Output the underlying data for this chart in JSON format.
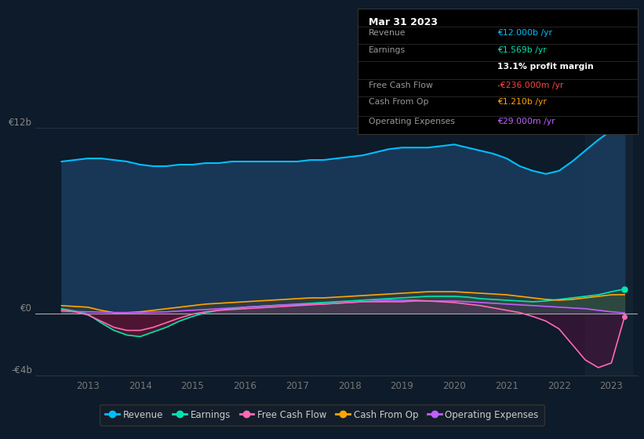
{
  "bg_color": "#0d1b2a",
  "ylim": [
    -4000000000,
    13000000000
  ],
  "xlim": [
    2012.0,
    2023.5
  ],
  "xticks": [
    2013,
    2014,
    2015,
    2016,
    2017,
    2018,
    2019,
    2020,
    2021,
    2022,
    2023
  ],
  "ylabel_top": "€12b",
  "ylabel_zero": "€0",
  "ylabel_bottom": "-€4b",
  "ytick_vals": [
    12000000000,
    0,
    -4000000000
  ],
  "legend": [
    {
      "label": "Revenue",
      "color": "#00bfff"
    },
    {
      "label": "Earnings",
      "color": "#00e5b0"
    },
    {
      "label": "Free Cash Flow",
      "color": "#ff69b4"
    },
    {
      "label": "Cash From Op",
      "color": "#ffa500"
    },
    {
      "label": "Operating Expenses",
      "color": "#bf5fff"
    }
  ],
  "tooltip": {
    "title": "Mar 31 2023",
    "rows": [
      {
        "label": "Revenue",
        "value": "€12.000b /yr",
        "value_color": "#00bfff"
      },
      {
        "label": "Earnings",
        "value": "€1.569b /yr",
        "value_color": "#00e5b0"
      },
      {
        "label": "",
        "value": "13.1% profit margin",
        "value_color": "#ffffff"
      },
      {
        "label": "Free Cash Flow",
        "value": "-€236.000m /yr",
        "value_color": "#ff4444"
      },
      {
        "label": "Cash From Op",
        "value": "€1.210b /yr",
        "value_color": "#ffa500"
      },
      {
        "label": "Operating Expenses",
        "value": "€29.000m /yr",
        "value_color": "#bf5fff"
      }
    ]
  },
  "years": [
    2012.5,
    2012.75,
    2013.0,
    2013.25,
    2013.5,
    2013.75,
    2014.0,
    2014.25,
    2014.5,
    2014.75,
    2015.0,
    2015.25,
    2015.5,
    2015.75,
    2016.0,
    2016.25,
    2016.5,
    2016.75,
    2017.0,
    2017.25,
    2017.5,
    2017.75,
    2018.0,
    2018.25,
    2018.5,
    2018.75,
    2019.0,
    2019.25,
    2019.5,
    2019.75,
    2020.0,
    2020.25,
    2020.5,
    2020.75,
    2021.0,
    2021.25,
    2021.5,
    2021.75,
    2022.0,
    2022.25,
    2022.5,
    2022.75,
    2023.0,
    2023.25
  ],
  "revenue": [
    9800000000,
    9900000000,
    10000000000,
    10000000000,
    9900000000,
    9800000000,
    9600000000,
    9500000000,
    9500000000,
    9600000000,
    9600000000,
    9700000000,
    9700000000,
    9800000000,
    9800000000,
    9800000000,
    9800000000,
    9800000000,
    9800000000,
    9900000000,
    9900000000,
    10000000000,
    10100000000,
    10200000000,
    10400000000,
    10600000000,
    10700000000,
    10700000000,
    10700000000,
    10800000000,
    10900000000,
    10700000000,
    10500000000,
    10300000000,
    10000000000,
    9500000000,
    9200000000,
    9000000000,
    9200000000,
    9800000000,
    10500000000,
    11200000000,
    11800000000,
    12000000000
  ],
  "earnings": [
    300000000,
    150000000,
    -50000000,
    -600000000,
    -1100000000,
    -1400000000,
    -1500000000,
    -1200000000,
    -900000000,
    -500000000,
    -200000000,
    50000000,
    200000000,
    300000000,
    400000000,
    450000000,
    500000000,
    550000000,
    600000000,
    650000000,
    700000000,
    750000000,
    800000000,
    850000000,
    900000000,
    950000000,
    1000000000,
    1050000000,
    1100000000,
    1100000000,
    1100000000,
    1050000000,
    950000000,
    900000000,
    850000000,
    800000000,
    750000000,
    800000000,
    900000000,
    1000000000,
    1100000000,
    1200000000,
    1400000000,
    1569000000
  ],
  "free_cash_flow": [
    200000000,
    100000000,
    -100000000,
    -500000000,
    -900000000,
    -1100000000,
    -1100000000,
    -900000000,
    -600000000,
    -300000000,
    -50000000,
    100000000,
    200000000,
    250000000,
    300000000,
    350000000,
    400000000,
    450000000,
    500000000,
    550000000,
    600000000,
    650000000,
    700000000,
    750000000,
    750000000,
    750000000,
    750000000,
    800000000,
    800000000,
    750000000,
    700000000,
    600000000,
    500000000,
    350000000,
    200000000,
    50000000,
    -200000000,
    -500000000,
    -1000000000,
    -2000000000,
    -3000000000,
    -3500000000,
    -3200000000,
    -236000000
  ],
  "cash_from_op": [
    500000000,
    450000000,
    400000000,
    200000000,
    50000000,
    50000000,
    100000000,
    200000000,
    300000000,
    400000000,
    500000000,
    600000000,
    650000000,
    700000000,
    750000000,
    800000000,
    850000000,
    900000000,
    950000000,
    1000000000,
    1000000000,
    1050000000,
    1100000000,
    1150000000,
    1200000000,
    1250000000,
    1300000000,
    1350000000,
    1400000000,
    1400000000,
    1400000000,
    1350000000,
    1300000000,
    1250000000,
    1200000000,
    1100000000,
    1000000000,
    900000000,
    850000000,
    900000000,
    1000000000,
    1100000000,
    1200000000,
    1210000000
  ],
  "op_expenses": [
    150000000,
    120000000,
    100000000,
    80000000,
    50000000,
    50000000,
    50000000,
    80000000,
    100000000,
    150000000,
    200000000,
    250000000,
    300000000,
    350000000,
    400000000,
    450000000,
    500000000,
    550000000,
    550000000,
    600000000,
    600000000,
    650000000,
    700000000,
    750000000,
    800000000,
    850000000,
    850000000,
    850000000,
    800000000,
    800000000,
    800000000,
    750000000,
    700000000,
    650000000,
    600000000,
    550000000,
    500000000,
    450000000,
    400000000,
    350000000,
    300000000,
    200000000,
    100000000,
    29000000
  ]
}
